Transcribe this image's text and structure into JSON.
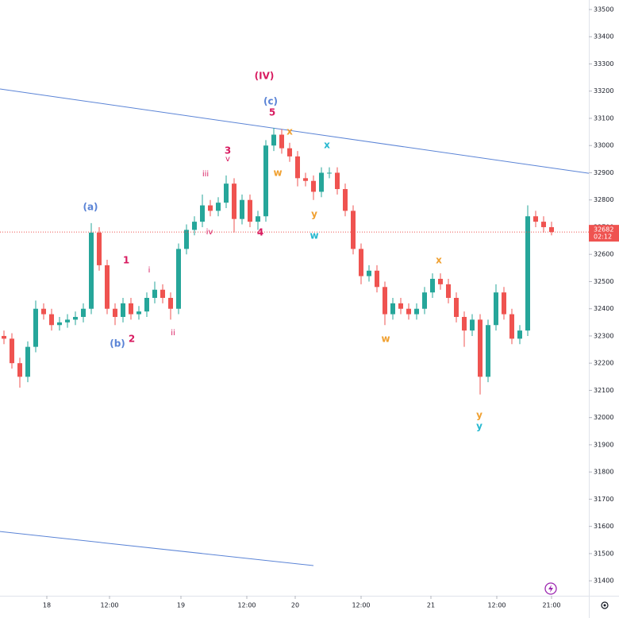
{
  "chart_data": {
    "type": "candlestick",
    "open": [
      32300,
      32290,
      32200,
      32150,
      32260,
      32400,
      32380,
      32340,
      32350,
      32360,
      32370,
      32400,
      32680,
      32560,
      32400,
      32370,
      32420,
      32380,
      32390,
      32440,
      32470,
      32440,
      32400,
      32620,
      32690,
      32720,
      32780,
      32760,
      32790,
      32860,
      32730,
      32800,
      32720,
      32740,
      33000,
      33040,
      32990,
      32960,
      32880,
      32870,
      32830,
      32900,
      32900,
      32840,
      32760,
      32620,
      32520,
      32540,
      32480,
      32380,
      32420,
      32400,
      32380,
      32400,
      32460,
      32510,
      32490,
      32440,
      32370,
      32320,
      32360,
      32150,
      32340,
      32460,
      32380,
      32290,
      32320,
      32740,
      32720,
      32700
    ],
    "high": [
      32320,
      32310,
      32220,
      32280,
      32430,
      32420,
      32400,
      32370,
      32380,
      32390,
      32420,
      32715,
      32700,
      32580,
      32420,
      32440,
      32440,
      32410,
      32460,
      32500,
      32490,
      32460,
      32640,
      32710,
      32740,
      32820,
      32800,
      32810,
      32890,
      32880,
      32820,
      32820,
      32760,
      33020,
      33065,
      33060,
      33010,
      32980,
      32900,
      32890,
      32920,
      32920,
      32920,
      32860,
      32780,
      32640,
      32560,
      32560,
      32500,
      32440,
      32440,
      32420,
      32420,
      32480,
      32530,
      32530,
      32510,
      32460,
      32390,
      32380,
      32380,
      32360,
      32490,
      32480,
      32400,
      32340,
      32780,
      32760,
      32740,
      32720
    ],
    "low": [
      32270,
      32180,
      32110,
      32130,
      32240,
      32360,
      32320,
      32320,
      32330,
      32340,
      32350,
      32380,
      32540,
      32380,
      32340,
      32350,
      32360,
      32360,
      32370,
      32420,
      32420,
      32360,
      32380,
      32600,
      32670,
      32700,
      32740,
      32740,
      32770,
      32680,
      32710,
      32700,
      32690,
      32720,
      32980,
      32970,
      32940,
      32850,
      32850,
      32800,
      32810,
      32880,
      32820,
      32740,
      32600,
      32490,
      32500,
      32460,
      32340,
      32360,
      32380,
      32360,
      32360,
      32380,
      32440,
      32470,
      32420,
      32350,
      32260,
      32300,
      32085,
      32130,
      32320,
      32360,
      32270,
      32270,
      32300,
      32700,
      32680,
      32670
    ],
    "close": [
      32290,
      32200,
      32150,
      32260,
      32400,
      32380,
      32340,
      32350,
      32360,
      32370,
      32400,
      32680,
      32560,
      32400,
      32370,
      32420,
      32380,
      32390,
      32440,
      32470,
      32440,
      32400,
      32620,
      32690,
      32720,
      32780,
      32760,
      32790,
      32860,
      32730,
      32800,
      32720,
      32740,
      33000,
      33040,
      32990,
      32960,
      32880,
      32870,
      32830,
      32900,
      32900,
      32840,
      32760,
      32620,
      32520,
      32540,
      32480,
      32380,
      32420,
      32400,
      32380,
      32400,
      32460,
      32510,
      32490,
      32440,
      32370,
      32320,
      32360,
      32150,
      32340,
      32460,
      32380,
      32290,
      32320,
      32740,
      32720,
      32700,
      32682
    ],
    "up_color": "#26a69a",
    "down_color": "#ef5350",
    "ylim": [
      31345,
      33535
    ],
    "yticks": [
      31400,
      31500,
      31600,
      31700,
      31800,
      31900,
      32000,
      32100,
      32200,
      32300,
      32400,
      32500,
      32600,
      32700,
      32800,
      32900,
      33000,
      33100,
      33200,
      33300,
      33400,
      33500
    ],
    "xlim": [
      -0.5,
      73.7
    ],
    "xticks": [
      {
        "value": 5.4,
        "label": "18"
      },
      {
        "value": 13.3,
        "label": "12:00"
      },
      {
        "value": 22.3,
        "label": "19"
      },
      {
        "value": 30.6,
        "label": "12:00"
      },
      {
        "value": 36.7,
        "label": "20"
      },
      {
        "value": 45,
        "label": "12:00"
      },
      {
        "value": 53.8,
        "label": "21"
      },
      {
        "value": 62.1,
        "label": "12:00"
      },
      {
        "value": 69,
        "label": "21:00"
      }
    ],
    "grid": false,
    "last_price": 32682,
    "countdown": "02:12",
    "last_price_color": "#ef5350",
    "trendlines": [
      {
        "x": [
          -0.5,
          73.7
        ],
        "y": [
          33208,
          32898
        ],
        "color": "#5b84d6"
      },
      {
        "x": [
          -0.5,
          39
        ],
        "y": [
          31581,
          31456
        ],
        "color": "#5b84d6"
      }
    ],
    "annotations": [
      {
        "text": "(IV)",
        "x": 32.8,
        "y": 33255,
        "color": "#d81b60"
      },
      {
        "text": "(c)",
        "x": 33.6,
        "y": 33161,
        "color": "#5b84d6"
      },
      {
        "text": "5",
        "x": 33.8,
        "y": 33120,
        "color": "#d81b60"
      },
      {
        "text": "x",
        "x": 36,
        "y": 33050,
        "color": "#f0a030"
      },
      {
        "text": "x",
        "x": 40.7,
        "y": 33000,
        "color": "#26b8d0"
      },
      {
        "text": "3",
        "x": 28.2,
        "y": 32980,
        "color": "#d81b60"
      },
      {
        "text": "v",
        "x": 28.2,
        "y": 32951,
        "color": "#d81b60"
      },
      {
        "text": "iii",
        "x": 25.4,
        "y": 32895,
        "color": "#d81b60"
      },
      {
        "text": "w",
        "x": 34.5,
        "y": 32898,
        "color": "#f0a030"
      },
      {
        "text": "(a)",
        "x": 10.9,
        "y": 32773,
        "color": "#5b84d6"
      },
      {
        "text": "y",
        "x": 39.1,
        "y": 32747,
        "color": "#f0a030"
      },
      {
        "text": "iv",
        "x": 25.9,
        "y": 32682,
        "color": "#d81b60"
      },
      {
        "text": "4",
        "x": 32.3,
        "y": 32679,
        "color": "#d81b60"
      },
      {
        "text": "w",
        "x": 39.1,
        "y": 32668,
        "color": "#26b8d0"
      },
      {
        "text": "x",
        "x": 54.8,
        "y": 32577,
        "color": "#f0a030"
      },
      {
        "text": "1",
        "x": 15.4,
        "y": 32577,
        "color": "#d81b60"
      },
      {
        "text": "i",
        "x": 18.3,
        "y": 32542,
        "color": "#d81b60"
      },
      {
        "text": "2",
        "x": 16.1,
        "y": 32288,
        "color": "#d81b60"
      },
      {
        "text": "(b)",
        "x": 14.3,
        "y": 32270,
        "color": "#5b84d6"
      },
      {
        "text": "ii",
        "x": 21.3,
        "y": 32311,
        "color": "#d81b60"
      },
      {
        "text": "w",
        "x": 48.1,
        "y": 32288,
        "color": "#f0a030"
      },
      {
        "text": "y",
        "x": 59.9,
        "y": 32008,
        "color": "#f0a030"
      },
      {
        "text": "y",
        "x": 59.9,
        "y": 31967,
        "color": "#26b8d0"
      }
    ]
  }
}
